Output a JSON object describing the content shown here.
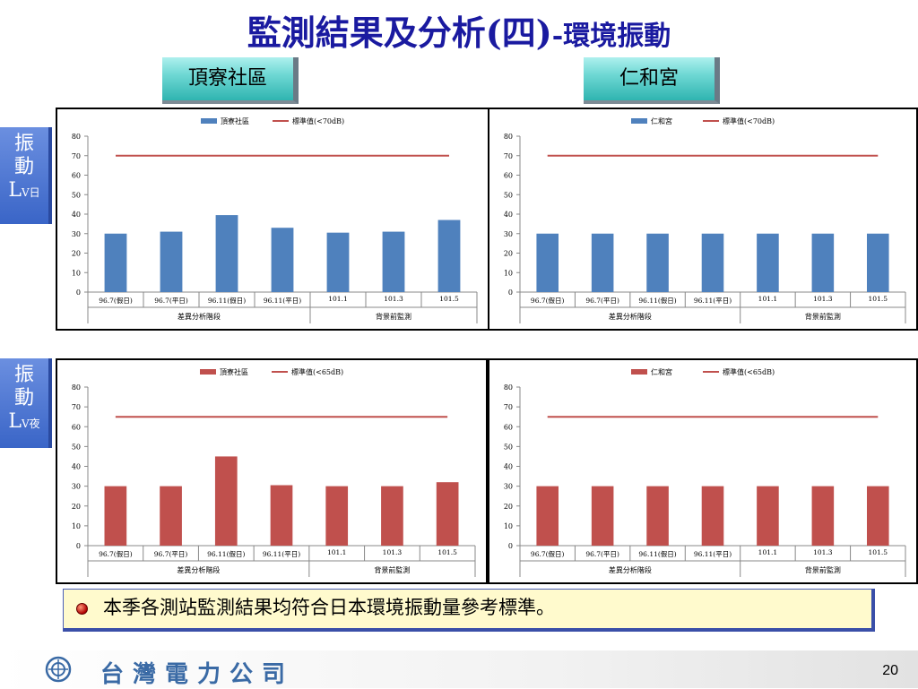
{
  "title": {
    "main": "監測結果及分析(四)",
    "dash": "-",
    "sub": "環境振動"
  },
  "sites": [
    "頂寮社區",
    "仁和宮"
  ],
  "rows": [
    {
      "label_line1": "振",
      "label_line2": "動",
      "label_line3": "L",
      "label_sub": "V日"
    },
    {
      "label_line1": "振",
      "label_line2": "動",
      "label_line3": "L",
      "label_sub": "V夜"
    }
  ],
  "colors": {
    "bar_day": "#4f81bd",
    "bar_night": "#c0504d",
    "standard_line": "#c0504d"
  },
  "chart_data": [
    {
      "type": "bar",
      "categories": [
        "96.7(假日)",
        "96.7(平日)",
        "96.11(假日)",
        "96.11(平日)",
        "101.1",
        "101.3",
        "101.5"
      ],
      "groups": [
        {
          "label": "差異分析階段",
          "span": 4
        },
        {
          "label": "背景前監測",
          "span": 3
        }
      ],
      "series": [
        {
          "name": "頂寮社區",
          "values": [
            30,
            31,
            39.5,
            33,
            30.5,
            31,
            37
          ]
        },
        {
          "name": "標準值(<70dB)",
          "values": [
            70,
            70,
            70,
            70,
            70,
            70,
            70
          ]
        }
      ],
      "ylim": [
        0,
        80
      ],
      "yticks": [
        0,
        10,
        20,
        30,
        40,
        50,
        60,
        70,
        80
      ]
    },
    {
      "type": "bar",
      "categories": [
        "96.7(假日)",
        "96.7(平日)",
        "96.11(假日)",
        "96.11(平日)",
        "101.1",
        "101.3",
        "101.5"
      ],
      "groups": [
        {
          "label": "差異分析階段",
          "span": 4
        },
        {
          "label": "背景前監測",
          "span": 3
        }
      ],
      "series": [
        {
          "name": "仁和宮",
          "values": [
            30,
            30,
            30,
            30,
            30,
            30,
            30
          ]
        },
        {
          "name": "標準值(<70dB)",
          "values": [
            70,
            70,
            70,
            70,
            70,
            70,
            70
          ]
        }
      ],
      "ylim": [
        0,
        80
      ],
      "yticks": [
        0,
        10,
        20,
        30,
        40,
        50,
        60,
        70,
        80
      ]
    },
    {
      "type": "bar",
      "categories": [
        "96.7(假日)",
        "96.7(平日)",
        "96.11(假日)",
        "96.11(平日)",
        "101.1",
        "101.3",
        "101.5"
      ],
      "groups": [
        {
          "label": "差異分析階段",
          "span": 4
        },
        {
          "label": "背景前監測",
          "span": 3
        }
      ],
      "series": [
        {
          "name": "頂寮社區",
          "values": [
            30,
            30,
            45,
            30.5,
            30,
            30,
            32
          ]
        },
        {
          "name": "標準值(<65dB)",
          "values": [
            65,
            65,
            65,
            65,
            65,
            65,
            65
          ]
        }
      ],
      "ylim": [
        0,
        80
      ],
      "yticks": [
        0,
        10,
        20,
        30,
        40,
        50,
        60,
        70,
        80
      ]
    },
    {
      "type": "bar",
      "categories": [
        "96.7(假日)",
        "96.7(平日)",
        "96.11(假日)",
        "96.11(平日)",
        "101.1",
        "101.3",
        "101.5"
      ],
      "groups": [
        {
          "label": "差異分析階段",
          "span": 4
        },
        {
          "label": "背景前監測",
          "span": 3
        }
      ],
      "series": [
        {
          "name": "仁和宮",
          "values": [
            30,
            30,
            30,
            30,
            30,
            30,
            30
          ]
        },
        {
          "name": "標準值(<65dB)",
          "values": [
            65,
            65,
            65,
            65,
            65,
            65,
            65
          ]
        }
      ],
      "ylim": [
        0,
        80
      ],
      "yticks": [
        0,
        10,
        20,
        30,
        40,
        50,
        60,
        70,
        80
      ]
    }
  ],
  "note": "本季各測站監測結果均符合日本環境振動量參考標準。",
  "footer": {
    "company": "台灣電力公司",
    "page": "20"
  }
}
